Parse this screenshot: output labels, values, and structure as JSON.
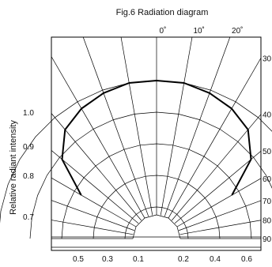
{
  "chart_data": {
    "type": "polar-radiation",
    "title": "Fig.6 Radiation diagram",
    "ylabel": "Relative radiant intensity",
    "angle_labels": [
      {
        "deg": 0,
        "text": "0˚"
      },
      {
        "deg": 10,
        "text": "10˚"
      },
      {
        "deg": 20,
        "text": "20˚"
      },
      {
        "deg": 30,
        "text": "30"
      },
      {
        "deg": 40,
        "text": "40"
      },
      {
        "deg": 50,
        "text": "50"
      },
      {
        "deg": 60,
        "text": "60"
      },
      {
        "deg": 70,
        "text": "70"
      },
      {
        "deg": 80,
        "text": "80"
      },
      {
        "deg": 90,
        "text": "90"
      }
    ],
    "left_ticks": [
      "1.0",
      "0.9",
      "0.8",
      "0.7"
    ],
    "bottom_ticks": [
      "0.5",
      "0.3",
      "0.1",
      "0.2",
      "0.4",
      "0.6"
    ],
    "grid_angles_deg": [
      10,
      20,
      30,
      40,
      50,
      60,
      70,
      80,
      90
    ],
    "grid_radii": [
      0.2,
      0.4,
      0.6,
      0.8,
      1.0
    ],
    "series": [
      {
        "points": [
          {
            "angle_deg": -60,
            "intensity": 0.55
          },
          {
            "angle_deg": -50,
            "intensity": 0.78
          },
          {
            "angle_deg": -40,
            "intensity": 0.9
          },
          {
            "angle_deg": -30,
            "intensity": 0.95
          },
          {
            "angle_deg": -20,
            "intensity": 0.98
          },
          {
            "angle_deg": -10,
            "intensity": 1.0
          },
          {
            "angle_deg": 0,
            "intensity": 1.0
          },
          {
            "angle_deg": 10,
            "intensity": 1.0
          },
          {
            "angle_deg": 20,
            "intensity": 0.98
          },
          {
            "angle_deg": 30,
            "intensity": 0.95
          },
          {
            "angle_deg": 40,
            "intensity": 0.9
          },
          {
            "angle_deg": 50,
            "intensity": 0.78
          },
          {
            "angle_deg": 60,
            "intensity": 0.55
          }
        ]
      }
    ]
  }
}
